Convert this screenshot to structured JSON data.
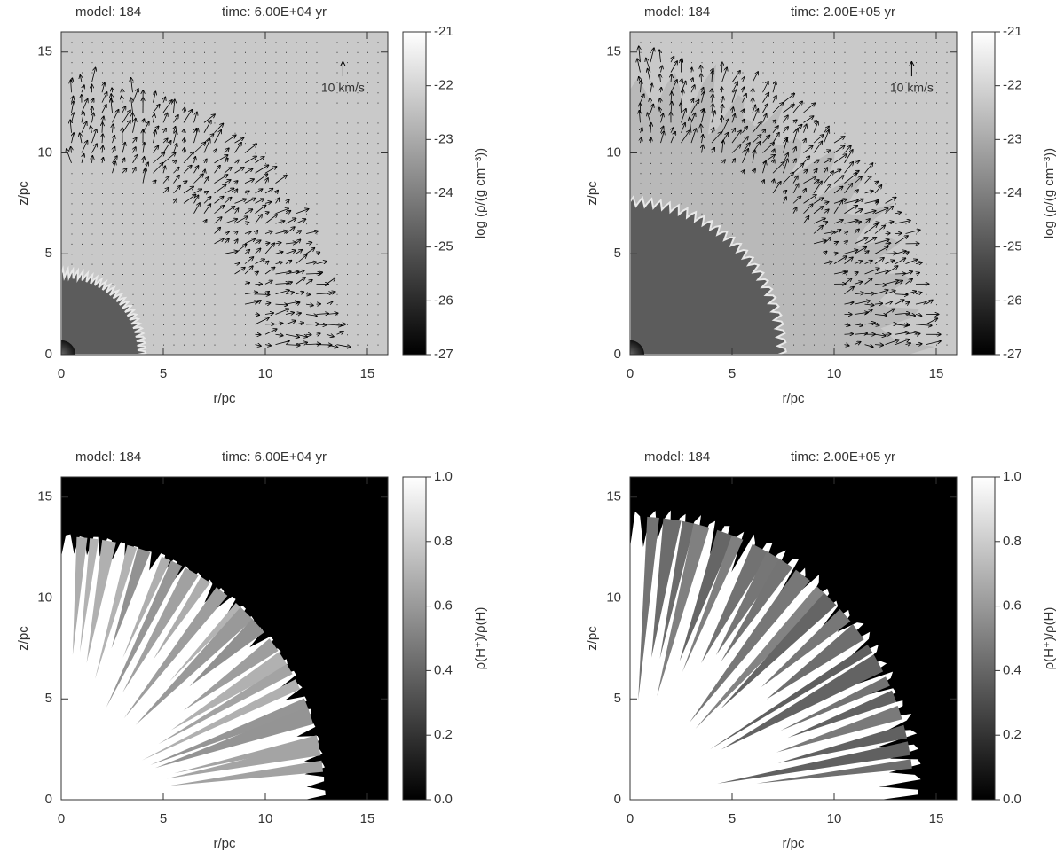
{
  "chart_data": [
    {
      "type": "image",
      "title": "model: 184",
      "subtitle": "time: 6.00E+04 yr",
      "annotation": "10 km/s",
      "xlabel": "r/pc",
      "ylabel": "z/pc",
      "xlim": [
        0,
        16
      ],
      "ylim": [
        0,
        16
      ],
      "xticks": [
        0,
        5,
        10,
        15
      ],
      "yticks": [
        0,
        5,
        10,
        15
      ],
      "colorbar": {
        "label": "log (ρ/(g cm⁻³))",
        "lim": [
          -27,
          -21
        ],
        "ticks": [
          -27,
          -26,
          -25,
          -24,
          -23,
          -22,
          -21
        ]
      }
    },
    {
      "type": "image",
      "title": "model: 184",
      "subtitle": "time: 2.00E+05 yr",
      "annotation": "10 km/s",
      "xlabel": "r/pc",
      "ylabel": "z/pc",
      "xlim": [
        0,
        16
      ],
      "ylim": [
        0,
        16
      ],
      "xticks": [
        0,
        5,
        10,
        15
      ],
      "yticks": [
        0,
        5,
        10,
        15
      ],
      "colorbar": {
        "label": "log (ρ/(g cm⁻³))",
        "lim": [
          -27,
          -21
        ],
        "ticks": [
          -27,
          -26,
          -25,
          -24,
          -23,
          -22,
          -21
        ]
      }
    },
    {
      "type": "image",
      "title": "model: 184",
      "subtitle": "time: 6.00E+04 yr",
      "xlabel": "r/pc",
      "ylabel": "z/pc",
      "xlim": [
        0,
        16
      ],
      "ylim": [
        0,
        16
      ],
      "xticks": [
        0,
        5,
        10,
        15
      ],
      "yticks": [
        0,
        5,
        10,
        15
      ],
      "colorbar": {
        "label": "ρ(H⁺)/ρ(H)",
        "lim": [
          0,
          1
        ],
        "ticks": [
          {
            "value": 0,
            "label": "0.0"
          },
          0.2,
          0.4,
          0.6,
          0.8,
          {
            "value": 1,
            "label": "1.0"
          }
        ]
      }
    },
    {
      "type": "image",
      "title": "model: 184",
      "subtitle": "time: 2.00E+05 yr",
      "xlabel": "r/pc",
      "ylabel": "z/pc",
      "xlim": [
        0,
        16
      ],
      "ylim": [
        0,
        16
      ],
      "xticks": [
        0,
        5,
        10,
        15
      ],
      "yticks": [
        0,
        5,
        10,
        15
      ],
      "colorbar": {
        "label": "ρ(H⁺)/ρ(H)",
        "lim": [
          0,
          1
        ],
        "ticks": [
          {
            "value": 0,
            "label": "0.0"
          },
          0.2,
          0.4,
          0.6,
          0.8,
          {
            "value": 1,
            "label": "1.0"
          }
        ]
      }
    }
  ]
}
